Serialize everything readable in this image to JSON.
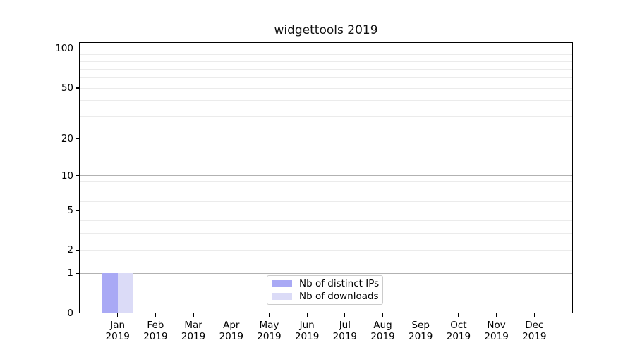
{
  "title": "widgettools 2019",
  "colors": {
    "background": "#ffffff",
    "axis": "#000000",
    "major_grid": "#b2b2b2",
    "minor_grid": "#ebebeb",
    "distinct_ips_bar": "#a9a9f5",
    "downloads_bar": "#dbdbf7",
    "legend_border": "#cccccc"
  },
  "chart_data": {
    "type": "bar",
    "title": "widgettools 2019",
    "categories": [
      "Jan",
      "Feb",
      "Mar",
      "Apr",
      "May",
      "Jun",
      "Jul",
      "Aug",
      "Sep",
      "Oct",
      "Nov",
      "Dec"
    ],
    "category_year": "2019",
    "series": [
      {
        "name": "Nb of distinct IPs",
        "color": "#a9a9f5",
        "values": [
          1,
          0,
          0,
          0,
          0,
          0,
          0,
          0,
          0,
          0,
          0,
          0
        ]
      },
      {
        "name": "Nb of downloads",
        "color": "#dbdbf7",
        "values": [
          1,
          0,
          0,
          0,
          0,
          0,
          0,
          0,
          0,
          0,
          0,
          0
        ]
      }
    ],
    "xlabel": "",
    "ylabel": "",
    "yscale": "log1p",
    "ylim": [
      0,
      112
    ],
    "yticks": [
      0,
      1,
      2,
      5,
      10,
      20,
      50,
      100
    ],
    "grid": {
      "major": [
        1,
        10,
        100
      ],
      "minor": [
        2,
        3,
        4,
        5,
        6,
        7,
        8,
        9,
        20,
        30,
        40,
        50,
        60,
        70,
        80,
        90
      ]
    },
    "legend_position": "lower center",
    "legend_entries": [
      "Nb of distinct IPs",
      "Nb of downloads"
    ]
  }
}
